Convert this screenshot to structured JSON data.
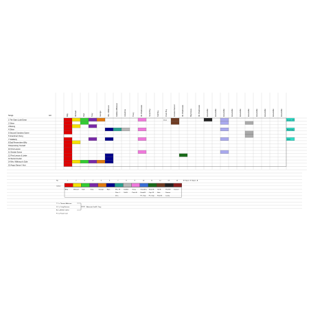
{
  "sheet": {
    "songs_header": "Songs",
    "act_header": "Act",
    "columns": [
      "Billy",
      "Michael",
      "Dad",
      "Tony",
      "George",
      "Mrs. Wilkinson",
      "Debbie Wilkinson",
      "Grandma",
      "Tracy",
      "Mr. Braithwaite",
      "Small Boy",
      "Tall Boy",
      "Posh Boy",
      "Female Dancer",
      "Mr. Braithwaite",
      "Big Davey",
      "Mr. Braithwaite",
      "Ensemble",
      "Ensemble",
      "Ensemble",
      "Ensemble",
      "Ensemble",
      "Ensemble",
      "Ensemble",
      "Ensemble",
      "Ensemble",
      "Ensemble"
    ],
    "songs": [
      "1 The Stars Look Down",
      "2 Shine",
      "3 Boxing",
      "4 Shine",
      "5 Second Grandma Scene",
      "6 Grandma's Song",
      "7 Solidarity",
      "8 Dad Remembers Billy",
      "9 Expressing Yourself",
      "10 First Lesson",
      "11 Sinclair Scene",
      "12 First Lesson & Letter",
      "13 Second Letter",
      "14 Mrs. Wilkinson's Dole",
      "15 Angry Dance / Hurt"
    ],
    "cell_notes": {
      "r0": "Draw",
      "right_r0": "ILCo 1 / PT",
      "right_r3": "Ray Daly 2",
      "right_r6": "Chris"
    }
  },
  "legend": {
    "no_label": "No",
    "colour_label": "Colour",
    "numbers": [
      "1",
      "2",
      "3",
      "4",
      "5",
      "6",
      "7",
      "8",
      "9",
      "10",
      "11",
      "12",
      "13",
      "14"
    ],
    "extra_numbers": [
      "M: Spare",
      "N: Spare",
      "A"
    ],
    "names_row1": [
      "Billy",
      "Michael",
      "Dad",
      "Tony",
      "George",
      "Big L",
      "Mrs. W",
      "Debbie",
      "Tracy",
      "Grandma",
      "Small B",
      "Tall B",
      "Posh B",
      "Dancer"
    ],
    "names_row2": [
      "",
      "",
      "",
      "",
      "",
      "",
      "Pian. 1",
      "Tall B",
      "Posh B",
      "Dead R",
      "Cap. W",
      "Solo",
      "Dancer",
      ""
    ],
    "names_row3": [
      "",
      "",
      "",
      "",
      "",
      "",
      "Drss",
      "",
      "",
      "Pri. Sup",
      "Pri. Sup",
      "Posh B",
      "Lucky",
      ""
    ],
    "colours": [
      "#e00000",
      "#f4e000",
      "#33cc33",
      "#7a2aa8",
      "#e07a10",
      "#00008a",
      "#28a090",
      "#b9b9b9",
      "#f07adc",
      "#3b6fd6",
      "#1a6b1a",
      "#6f3b22",
      "#222222",
      "#8c2020"
    ]
  },
  "notes": {
    "lines": [
      "T 1 = Thomas Atkinson",
      "S 1 = Craig Benson",
      "A 2 = Ambie Clarke",
      "F 2 = Fraser Carr"
    ],
    "bracket_label": "Alternate Dad/D. Tony"
  }
}
